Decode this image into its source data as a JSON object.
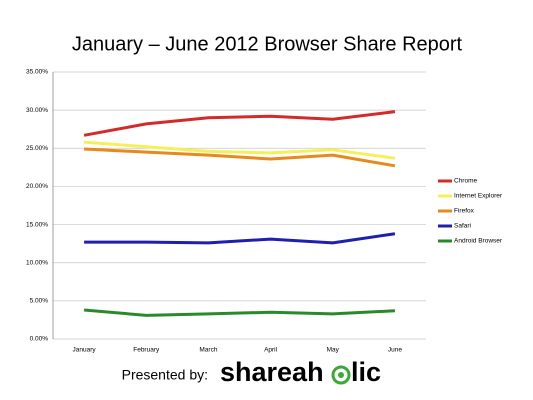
{
  "chart_data": {
    "type": "line",
    "title": "January – June 2012 Browser Share Report",
    "categories": [
      "January",
      "February",
      "March",
      "April",
      "May",
      "June"
    ],
    "series": [
      {
        "name": "Chrome",
        "color": "#d42a2a",
        "values": [
          26.7,
          28.2,
          29.0,
          29.2,
          28.8,
          29.8
        ]
      },
      {
        "name": "Internet Explorer",
        "color": "#f5f05a",
        "values": [
          25.8,
          25.2,
          24.6,
          24.4,
          24.8,
          23.7
        ]
      },
      {
        "name": "Firefox",
        "color": "#e8891e",
        "values": [
          24.9,
          24.5,
          24.1,
          23.6,
          24.1,
          22.7
        ]
      },
      {
        "name": "Safari",
        "color": "#1f1fb0",
        "values": [
          12.7,
          12.7,
          12.6,
          13.1,
          12.6,
          13.8
        ]
      },
      {
        "name": "Android Browser",
        "color": "#2a8a2a",
        "values": [
          3.8,
          3.1,
          3.3,
          3.5,
          3.3,
          3.7
        ]
      }
    ],
    "ylim": [
      0,
      35
    ],
    "yticks": [
      {
        "value": 0,
        "label": "0.00%"
      },
      {
        "value": 5,
        "label": "5.00%"
      },
      {
        "value": 10,
        "label": "10.00%"
      },
      {
        "value": 15,
        "label": "15.00%"
      },
      {
        "value": 20,
        "label": "20.00%"
      },
      {
        "value": 25,
        "label": "25.00%"
      },
      {
        "value": 30,
        "label": "30.00%"
      },
      {
        "value": 35,
        "label": "35.00%"
      }
    ],
    "grid": true,
    "legend": "right"
  },
  "footer": {
    "presented_by": "Presented by:",
    "logo_left": "shareah",
    "logo_right": "lic"
  }
}
